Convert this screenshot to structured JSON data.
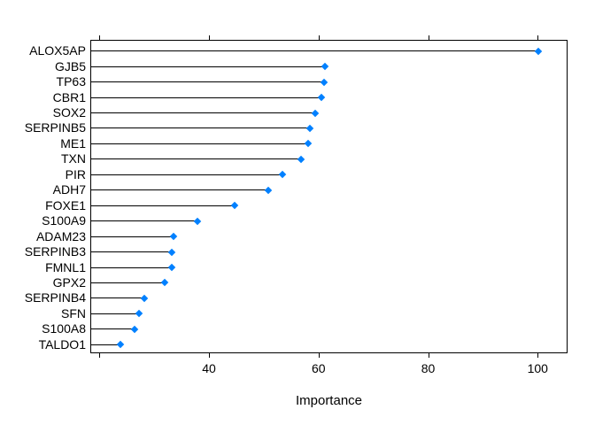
{
  "chart_data": {
    "type": "dotplot",
    "title": "",
    "xlabel": "Importance",
    "ylabel": "",
    "legend_position": "none",
    "grid": false,
    "xlim": [
      18.3,
      105.4
    ],
    "x_ticks": [
      {
        "value": 20,
        "label": ""
      },
      {
        "value": 40,
        "label": "40"
      },
      {
        "value": 60,
        "label": "60"
      },
      {
        "value": 80,
        "label": "80"
      },
      {
        "value": 100,
        "label": "100"
      }
    ],
    "categories": [
      "ALOX5AP",
      "GJB5",
      "TP63",
      "CBR1",
      "SOX2",
      "SERPINB5",
      "ME1",
      "TXN",
      "PIR",
      "ADH7",
      "FOXE1",
      "S100A9",
      "ADAM23",
      "SERPINB3",
      "FMNL1",
      "GPX2",
      "SERPINB4",
      "SFN",
      "S100A8",
      "TALDO1"
    ],
    "values": [
      100.0,
      61.0,
      60.9,
      60.3,
      59.2,
      58.2,
      58.0,
      56.7,
      53.3,
      50.7,
      44.5,
      37.7,
      33.4,
      33.1,
      33.0,
      31.7,
      28.0,
      27.1,
      26.2,
      23.7
    ],
    "marker": "diamond",
    "marker_color": "#0080ff",
    "stem_color": "#000000",
    "axis_color": "#000000",
    "background_color": "#ffffff"
  }
}
